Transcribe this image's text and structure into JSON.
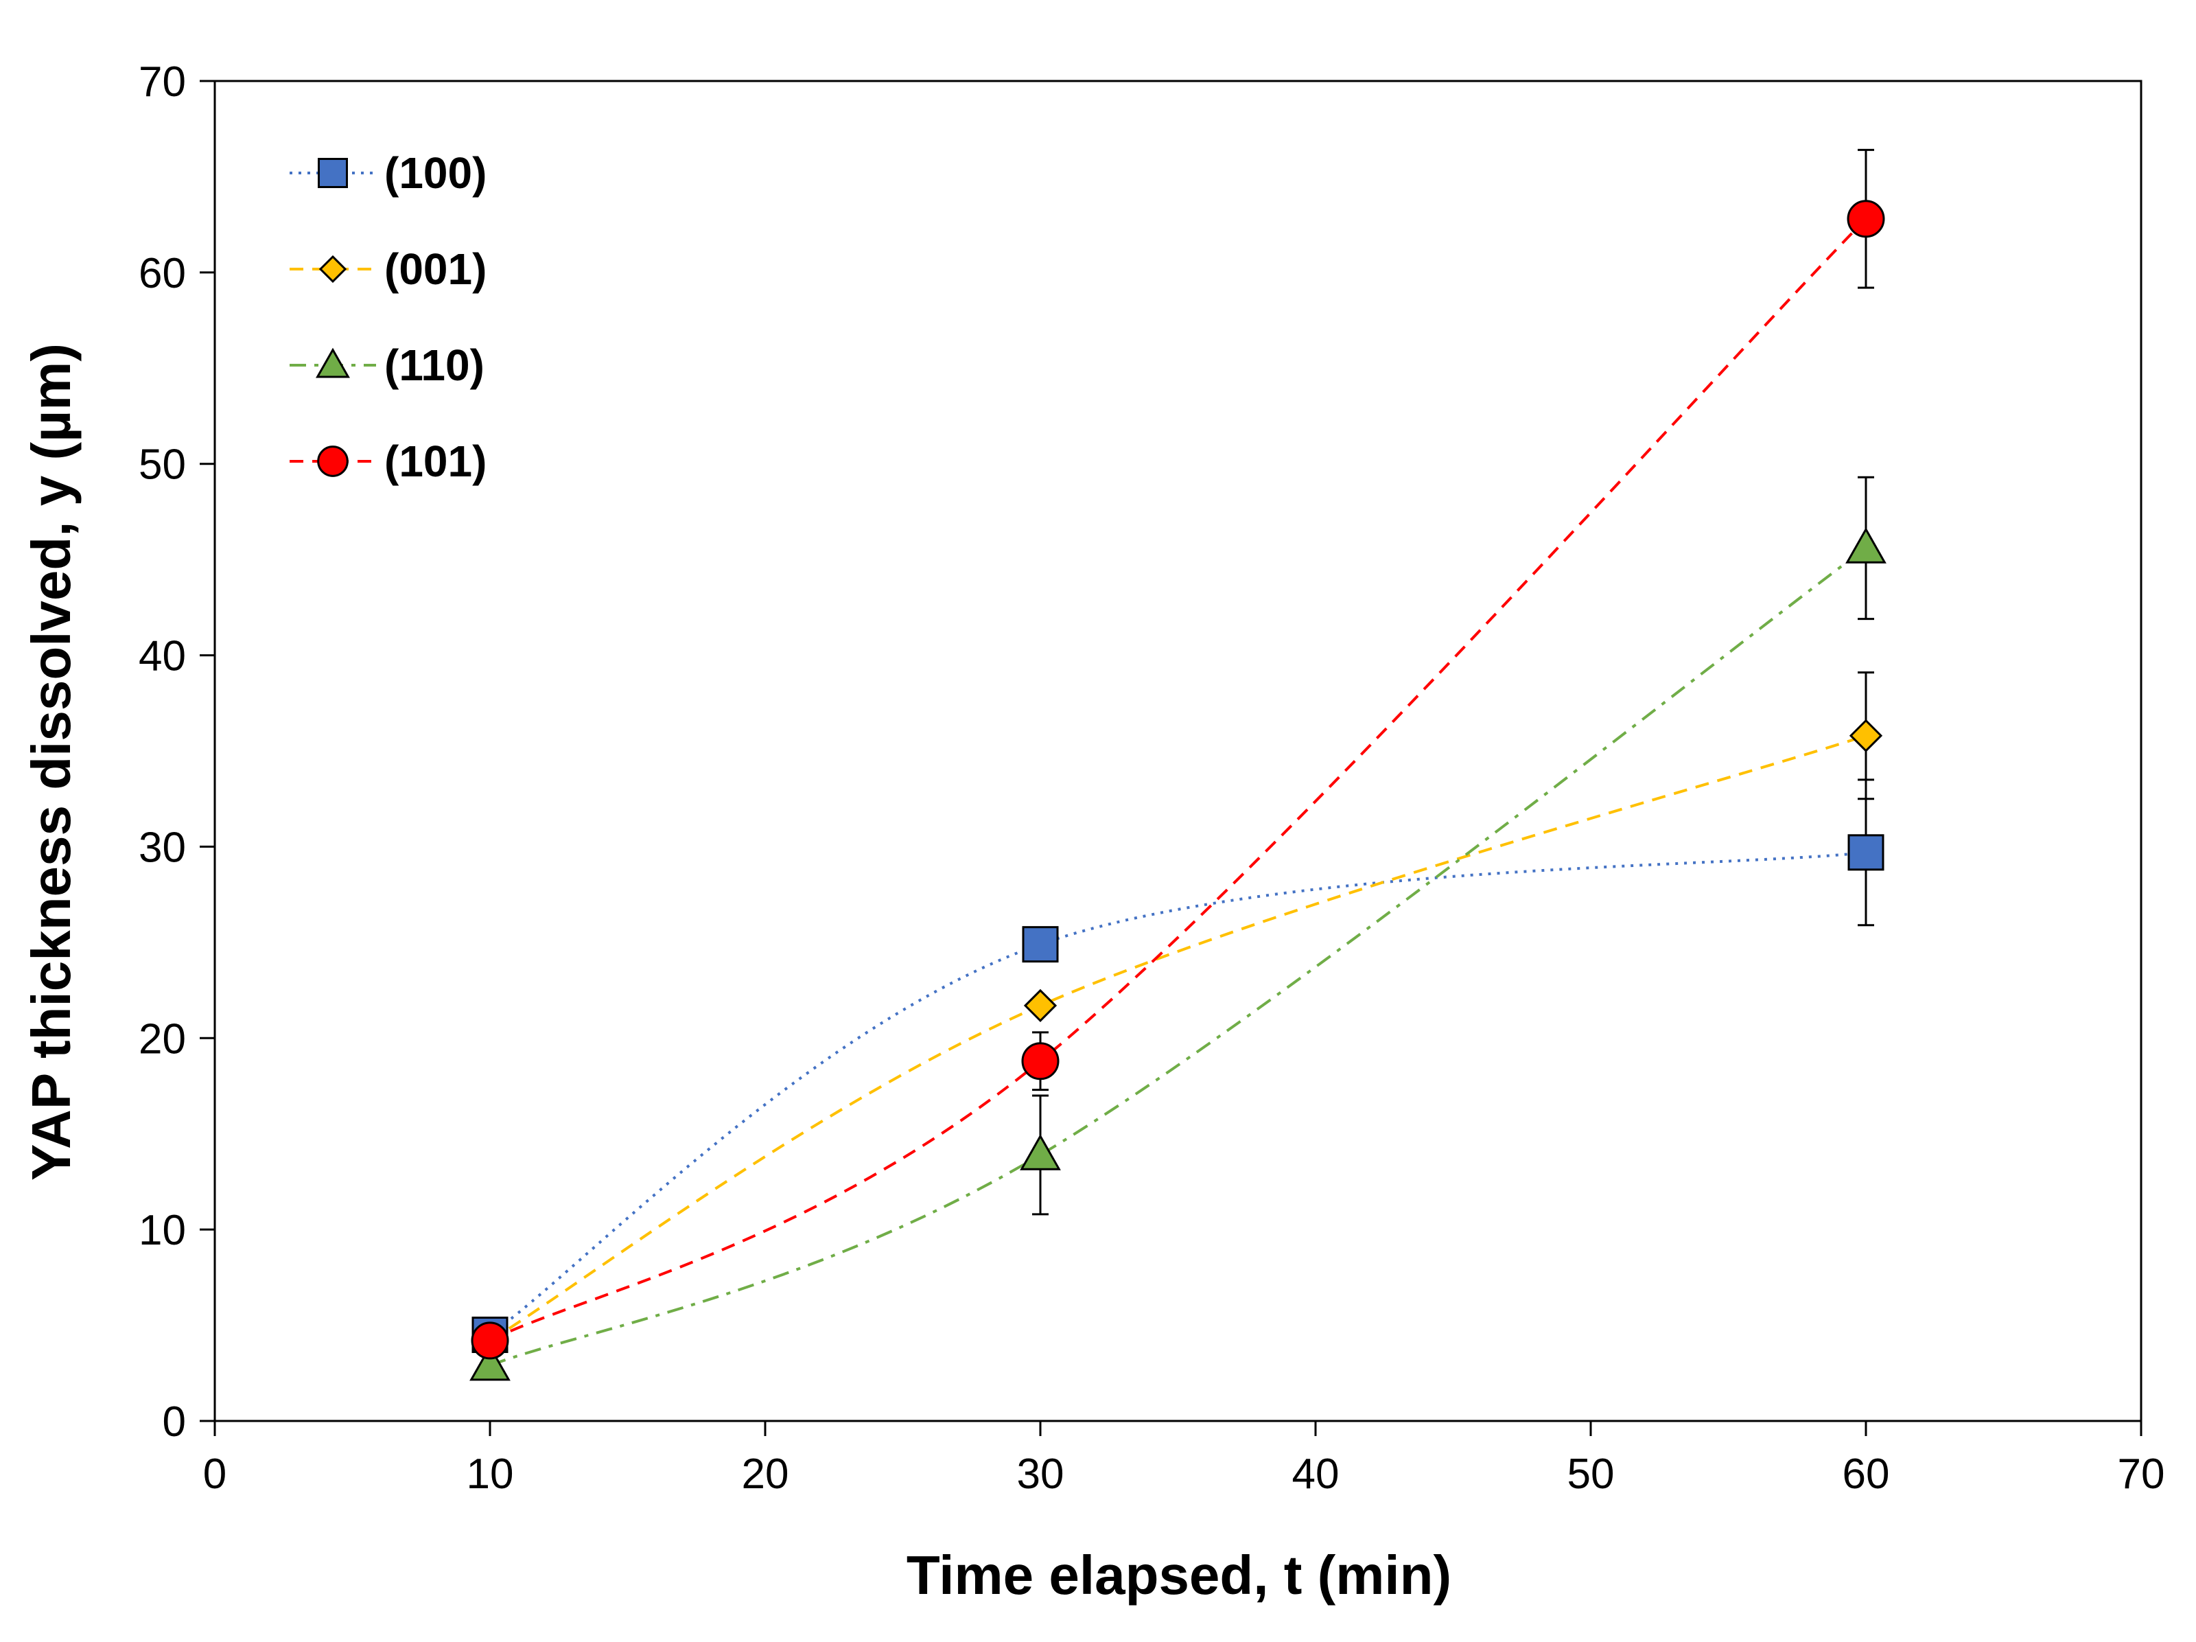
{
  "chart_data": {
    "type": "line",
    "xlabel": "Time elapsed, t (min)",
    "ylabel": "YAP thickness dissolved, y (µm)",
    "xlim": [
      0,
      70
    ],
    "ylim": [
      0,
      70
    ],
    "xticks": [
      "0",
      "10",
      "20",
      "30",
      "40",
      "50",
      "60",
      "70"
    ],
    "yticks": [
      "0",
      "10",
      "20",
      "30",
      "40",
      "50",
      "60",
      "70"
    ],
    "grid": false,
    "legend_position": "top-left",
    "series": [
      {
        "name": "(100)",
        "marker": "square",
        "color": "#4472C4",
        "line_style": "dotted",
        "x": [
          10,
          30,
          60
        ],
        "y": [
          4.5,
          24.9,
          29.7
        ],
        "error": [
          0,
          0,
          3.8
        ]
      },
      {
        "name": "(001)",
        "marker": "diamond",
        "color": "#FFC000",
        "line_style": "dashed",
        "x": [
          10,
          30,
          60
        ],
        "y": [
          4.2,
          21.7,
          35.8
        ],
        "error": [
          0,
          0,
          3.3
        ]
      },
      {
        "name": "(110)",
        "marker": "triangle",
        "color": "#70AD47",
        "line_style": "dash-dot",
        "x": [
          10,
          30,
          60
        ],
        "y": [
          2.9,
          13.9,
          45.6
        ],
        "error": [
          0,
          3.1,
          3.7
        ]
      },
      {
        "name": "(101)",
        "marker": "circle",
        "color": "#FF0000",
        "line_style": "dashed",
        "x": [
          10,
          30,
          60
        ],
        "y": [
          4.2,
          18.8,
          62.8
        ],
        "error": [
          0,
          1.5,
          3.6
        ]
      }
    ]
  }
}
